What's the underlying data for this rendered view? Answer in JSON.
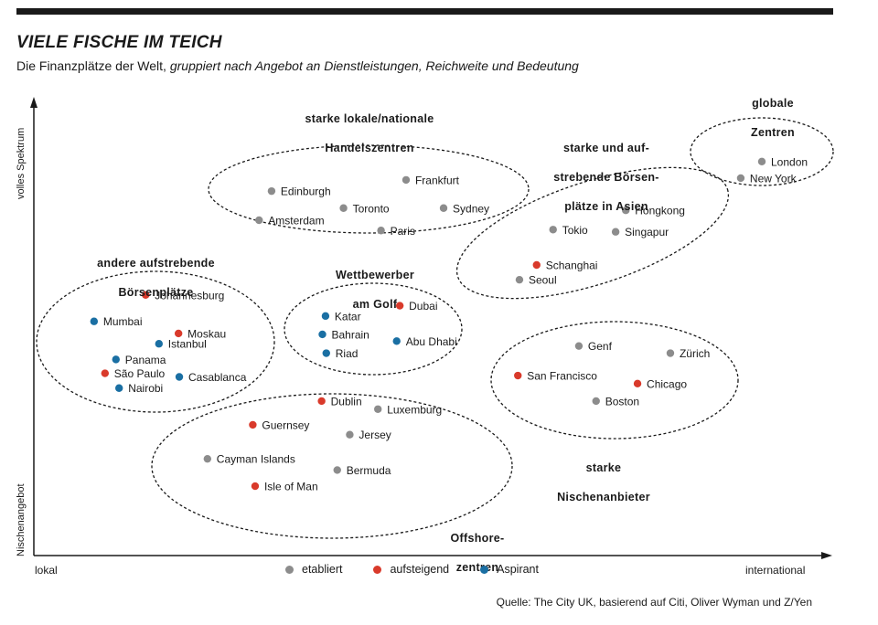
{
  "title": "VIELE FISCHE IM TEICH",
  "subtitle_plain": "Die Finanzplätze der Welt,",
  "subtitle_italic": "gruppiert nach Angebot an Dienstleistungen, Reichweite und Bedeutung",
  "source": "Quelle: The City UK, basierend auf Citi, Oliver Wyman und Z/Yen",
  "colors": {
    "etabliert": "#8c8c8c",
    "aufsteigend": "#d93a2b",
    "Aspirant": "#1a6fa3",
    "ink": "#1a1a1a"
  },
  "chart_data": {
    "type": "scatter",
    "title": "VIELE FISCHE IM TEICH",
    "xlabel_left": "lokal",
    "xlabel_right": "international",
    "ylabel_bottom": "Nischenangebot",
    "ylabel_top": "volles Spektrum",
    "xlim": [
      0,
      100
    ],
    "ylim": [
      0,
      100
    ],
    "legend": [
      {
        "key": "etabliert",
        "label": "etabliert"
      },
      {
        "key": "aufsteigend",
        "label": "aufsteigend"
      },
      {
        "key": "Aspirant",
        "label": "Aspirant"
      }
    ],
    "groups": [
      {
        "name": "globale Zentren",
        "label_lines": [
          "globale",
          "Zentren"
        ]
      },
      {
        "name": "starke lokale/nationale Handelszentren",
        "label_lines": [
          "starke lokale/nationale",
          "Handelszentren"
        ]
      },
      {
        "name": "starke und aufstrebende Börsenplätze in Asien",
        "label_lines": [
          "starke und auf-",
          "strebende Börsen-",
          "plätze in Asien"
        ]
      },
      {
        "name": "andere aufstrebende Börsenplätze",
        "label_lines": [
          "andere aufstrebende",
          "Börsenplätze"
        ]
      },
      {
        "name": "Wettbewerber am Golf",
        "label_lines": [
          "Wettbewerber",
          "am Golf"
        ]
      },
      {
        "name": "starke Nischenanbieter",
        "label_lines": [
          "starke",
          "Nischenanbieter"
        ]
      },
      {
        "name": "Offshore-zentren",
        "label_lines": [
          "Offshore-",
          "zentren"
        ]
      }
    ],
    "points": [
      {
        "city": "London",
        "x": 93.1,
        "y": 88.0,
        "status": "etabliert",
        "group": "globale Zentren"
      },
      {
        "city": "New York",
        "x": 90.4,
        "y": 84.3,
        "status": "etabliert",
        "group": "globale Zentren"
      },
      {
        "city": "Frankfurt",
        "x": 47.6,
        "y": 83.9,
        "status": "etabliert",
        "group": "starke lokale/nationale Handelszentren"
      },
      {
        "city": "Edinburgh",
        "x": 30.4,
        "y": 81.4,
        "status": "etabliert",
        "group": "starke lokale/nationale Handelszentren"
      },
      {
        "city": "Toronto",
        "x": 39.6,
        "y": 77.6,
        "status": "etabliert",
        "group": "starke lokale/nationale Handelszentren"
      },
      {
        "city": "Sydney",
        "x": 52.4,
        "y": 77.6,
        "status": "etabliert",
        "group": "starke lokale/nationale Handelszentren"
      },
      {
        "city": "Amsterdam",
        "x": 28.8,
        "y": 74.9,
        "status": "etabliert",
        "group": "starke lokale/nationale Handelszentren"
      },
      {
        "city": "Paris",
        "x": 44.4,
        "y": 72.6,
        "status": "etabliert",
        "group": "starke lokale/nationale Handelszentren"
      },
      {
        "city": "Hongkong",
        "x": 75.7,
        "y": 77.1,
        "status": "etabliert",
        "group": "starke und aufstrebende Börsenplätze in Asien"
      },
      {
        "city": "Tokio",
        "x": 66.4,
        "y": 72.8,
        "status": "etabliert",
        "group": "starke und aufstrebende Börsenplätze in Asien"
      },
      {
        "city": "Singapur",
        "x": 74.4,
        "y": 72.3,
        "status": "etabliert",
        "group": "starke und aufstrebende Börsenplätze in Asien"
      },
      {
        "city": "Schanghai",
        "x": 64.3,
        "y": 64.9,
        "status": "aufsteigend",
        "group": "starke und aufstrebende Börsenplätze in Asien"
      },
      {
        "city": "Seoul",
        "x": 62.1,
        "y": 61.6,
        "status": "etabliert",
        "group": "starke und aufstrebende Börsenplätze in Asien"
      },
      {
        "city": "Johannesburg",
        "x": 14.3,
        "y": 58.2,
        "status": "aufsteigend",
        "group": "andere aufstrebende Börsenplätze"
      },
      {
        "city": "Mumbai",
        "x": 7.7,
        "y": 52.3,
        "status": "Aspirant",
        "group": "andere aufstrebende Börsenplätze"
      },
      {
        "city": "Moskau",
        "x": 18.5,
        "y": 49.6,
        "status": "aufsteigend",
        "group": "andere aufstrebende Börsenplätze"
      },
      {
        "city": "Istanbul",
        "x": 16.0,
        "y": 47.3,
        "status": "Aspirant",
        "group": "andere aufstrebende Börsenplätze"
      },
      {
        "city": "Panama",
        "x": 10.5,
        "y": 43.8,
        "status": "Aspirant",
        "group": "andere aufstrebende Börsenplätze"
      },
      {
        "city": "São Paulo",
        "x": 9.1,
        "y": 40.7,
        "status": "aufsteigend",
        "group": "andere aufstrebende Börsenplätze"
      },
      {
        "city": "Casablanca",
        "x": 18.6,
        "y": 39.9,
        "status": "Aspirant",
        "group": "andere aufstrebende Börsenplätze"
      },
      {
        "city": "Nairobi",
        "x": 10.9,
        "y": 37.4,
        "status": "Aspirant",
        "group": "andere aufstrebende Börsenplätze"
      },
      {
        "city": "Dubai",
        "x": 46.8,
        "y": 55.8,
        "status": "aufsteigend",
        "group": "Wettbewerber am Golf"
      },
      {
        "city": "Katar",
        "x": 37.3,
        "y": 53.5,
        "status": "Aspirant",
        "group": "Wettbewerber am Golf"
      },
      {
        "city": "Bahrain",
        "x": 36.9,
        "y": 49.4,
        "status": "Aspirant",
        "group": "Wettbewerber am Golf"
      },
      {
        "city": "Abu Dhabi",
        "x": 46.4,
        "y": 47.9,
        "status": "Aspirant",
        "group": "Wettbewerber am Golf"
      },
      {
        "city": "Riad",
        "x": 37.4,
        "y": 45.2,
        "status": "Aspirant",
        "group": "Wettbewerber am Golf"
      },
      {
        "city": "Genf",
        "x": 69.7,
        "y": 46.8,
        "status": "etabliert",
        "group": "starke Nischenanbieter"
      },
      {
        "city": "Zürich",
        "x": 81.4,
        "y": 45.2,
        "status": "etabliert",
        "group": "starke Nischenanbieter"
      },
      {
        "city": "San Francisco",
        "x": 61.9,
        "y": 40.2,
        "status": "aufsteigend",
        "group": "starke Nischenanbieter"
      },
      {
        "city": "Chicago",
        "x": 77.2,
        "y": 38.4,
        "status": "aufsteigend",
        "group": "starke Nischenanbieter"
      },
      {
        "city": "Boston",
        "x": 71.9,
        "y": 34.5,
        "status": "etabliert",
        "group": "starke Nischenanbieter"
      },
      {
        "city": "Dublin",
        "x": 36.8,
        "y": 34.5,
        "status": "aufsteigend",
        "group": "Offshore-zentren"
      },
      {
        "city": "Luxemburg",
        "x": 44.0,
        "y": 32.7,
        "status": "etabliert",
        "group": "Offshore-zentren"
      },
      {
        "city": "Guernsey",
        "x": 28.0,
        "y": 29.2,
        "status": "aufsteigend",
        "group": "Offshore-zentren"
      },
      {
        "city": "Jersey",
        "x": 40.4,
        "y": 27.0,
        "status": "etabliert",
        "group": "Offshore-zentren"
      },
      {
        "city": "Cayman Islands",
        "x": 22.2,
        "y": 21.6,
        "status": "etabliert",
        "group": "Offshore-zentren"
      },
      {
        "city": "Bermuda",
        "x": 38.8,
        "y": 19.1,
        "status": "etabliert",
        "group": "Offshore-zentren"
      },
      {
        "city": "Isle of Man",
        "x": 28.3,
        "y": 15.5,
        "status": "aufsteigend",
        "group": "Offshore-zentren"
      }
    ]
  }
}
